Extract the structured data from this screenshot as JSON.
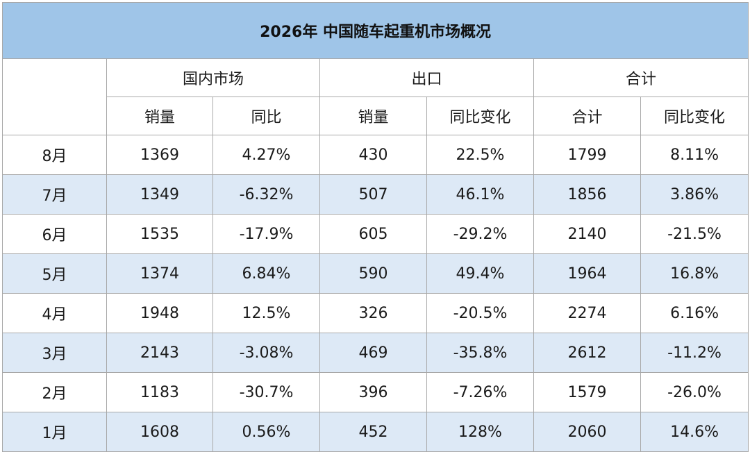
{
  "title": "2026年 中国随车起重机市场概况",
  "groups": {
    "domestic": "国内市场",
    "export": "出口",
    "total": "合计"
  },
  "subheaders": {
    "domestic_sales": "销量",
    "domestic_yoy": "同比",
    "export_sales": "销量",
    "export_yoy": "同比变化",
    "total_sales": "合计",
    "total_yoy": "同比变化"
  },
  "rows": [
    {
      "month": "8月",
      "domestic_sales": "1369",
      "domestic_yoy": "4.27%",
      "export_sales": "430",
      "export_yoy": "22.5%",
      "total_sales": "1799",
      "total_yoy": "8.11%"
    },
    {
      "month": "7月",
      "domestic_sales": "1349",
      "domestic_yoy": "-6.32%",
      "export_sales": "507",
      "export_yoy": "46.1%",
      "total_sales": "1856",
      "total_yoy": "3.86%"
    },
    {
      "month": "6月",
      "domestic_sales": "1535",
      "domestic_yoy": "-17.9%",
      "export_sales": "605",
      "export_yoy": "-29.2%",
      "total_sales": "2140",
      "total_yoy": "-21.5%"
    },
    {
      "month": "5月",
      "domestic_sales": "1374",
      "domestic_yoy": "6.84%",
      "export_sales": "590",
      "export_yoy": "49.4%",
      "total_sales": "1964",
      "total_yoy": "16.8%"
    },
    {
      "month": "4月",
      "domestic_sales": "1948",
      "domestic_yoy": "12.5%",
      "export_sales": "326",
      "export_yoy": "-20.5%",
      "total_sales": "2274",
      "total_yoy": "6.16%"
    },
    {
      "month": "3月",
      "domestic_sales": "2143",
      "domestic_yoy": "-3.08%",
      "export_sales": "469",
      "export_yoy": "-35.8%",
      "total_sales": "2612",
      "total_yoy": "-11.2%"
    },
    {
      "month": "2月",
      "domestic_sales": "1183",
      "domestic_yoy": "-30.7%",
      "export_sales": "396",
      "export_yoy": "-7.26%",
      "total_sales": "1579",
      "total_yoy": "-26.0%"
    },
    {
      "month": "1月",
      "domestic_sales": "1608",
      "domestic_yoy": "0.56%",
      "export_sales": "452",
      "export_yoy": "128%",
      "total_sales": "2060",
      "total_yoy": "14.6%"
    }
  ],
  "colors": {
    "title_bg": "#9fc5e8",
    "alt_row_bg": "#dde9f6",
    "border": "#a8a8a8"
  }
}
